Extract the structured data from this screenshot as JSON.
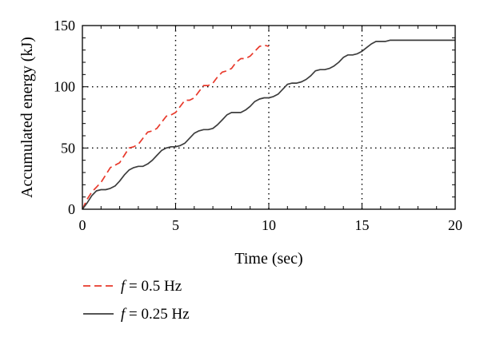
{
  "chart_data": {
    "type": "line",
    "xlabel": "Time (sec)",
    "ylabel": "Accumulated energy (kJ)",
    "xlim": [
      0,
      20
    ],
    "ylim": [
      0,
      150
    ],
    "x_ticks": [
      "0",
      "5",
      "10",
      "15",
      "20"
    ],
    "y_ticks": [
      "0",
      "50",
      "100",
      "150"
    ],
    "grid": "dotted",
    "legend_placement": "bottom-left, below plot",
    "series": [
      {
        "name_prefix": "f",
        "name_value": " = 0.5 Hz",
        "color": "#e8392b",
        "style": "dashed",
        "x": [
          0,
          0.25,
          0.5,
          0.75,
          1.0,
          1.25,
          1.5,
          1.75,
          2.0,
          2.25,
          2.5,
          2.75,
          3.0,
          3.25,
          3.5,
          3.75,
          4.0,
          4.25,
          4.5,
          4.75,
          5.0,
          5.25,
          5.5,
          5.75,
          6.0,
          6.25,
          6.5,
          6.75,
          7.0,
          7.25,
          7.5,
          7.75,
          8.0,
          8.25,
          8.5,
          8.75,
          9.0,
          9.25,
          9.5,
          9.75,
          10.0
        ],
        "y": [
          0,
          8,
          14,
          18,
          22,
          28,
          34,
          36,
          38,
          44,
          50,
          51,
          53,
          58,
          63,
          64,
          66,
          71,
          76,
          77,
          79,
          84,
          89,
          89,
          91,
          96,
          101,
          101,
          103,
          108,
          112,
          113,
          115,
          120,
          123,
          123,
          125,
          129,
          133,
          134,
          133
        ]
      },
      {
        "name_prefix": "f",
        "name_value": " = 0.25 Hz",
        "color": "#3d3d3d",
        "style": "solid",
        "x": [
          0,
          0.25,
          0.5,
          0.75,
          1.0,
          1.25,
          1.5,
          1.75,
          2.0,
          2.25,
          2.5,
          2.75,
          3.0,
          3.25,
          3.5,
          3.75,
          4.0,
          4.25,
          4.5,
          4.75,
          5.0,
          5.25,
          5.5,
          5.75,
          6.0,
          6.25,
          6.5,
          6.75,
          7.0,
          7.25,
          7.5,
          7.75,
          8.0,
          8.25,
          8.5,
          8.75,
          9.0,
          9.25,
          9.5,
          9.75,
          10.0,
          10.25,
          10.5,
          10.75,
          11.0,
          11.25,
          11.5,
          11.75,
          12.0,
          12.25,
          12.5,
          12.75,
          13.0,
          13.25,
          13.5,
          13.75,
          14.0,
          14.25,
          14.5,
          14.75,
          15.0,
          15.25,
          15.5,
          15.75,
          16.0,
          16.25,
          16.5,
          16.75,
          17.0,
          17.25,
          17.5,
          17.75,
          18.0,
          18.25,
          18.5,
          18.75,
          19.0,
          19.25,
          19.5,
          19.75,
          20.0
        ],
        "y": [
          0,
          5,
          11,
          15,
          16,
          16,
          17,
          19,
          23,
          28,
          32,
          34,
          35,
          35,
          37,
          40,
          44,
          48,
          50,
          51,
          51,
          52,
          54,
          58,
          62,
          64,
          65,
          65,
          66,
          69,
          73,
          77,
          79,
          79,
          79,
          81,
          84,
          88,
          90,
          91,
          91,
          92,
          94,
          98,
          102,
          103,
          103,
          104,
          106,
          109,
          113,
          114,
          114,
          115,
          117,
          120,
          124,
          126,
          126,
          127,
          129,
          132,
          135,
          137,
          137,
          137,
          138,
          138,
          138,
          138,
          138,
          138,
          138,
          138,
          138,
          138,
          138,
          138,
          138,
          138,
          138
        ]
      }
    ]
  }
}
